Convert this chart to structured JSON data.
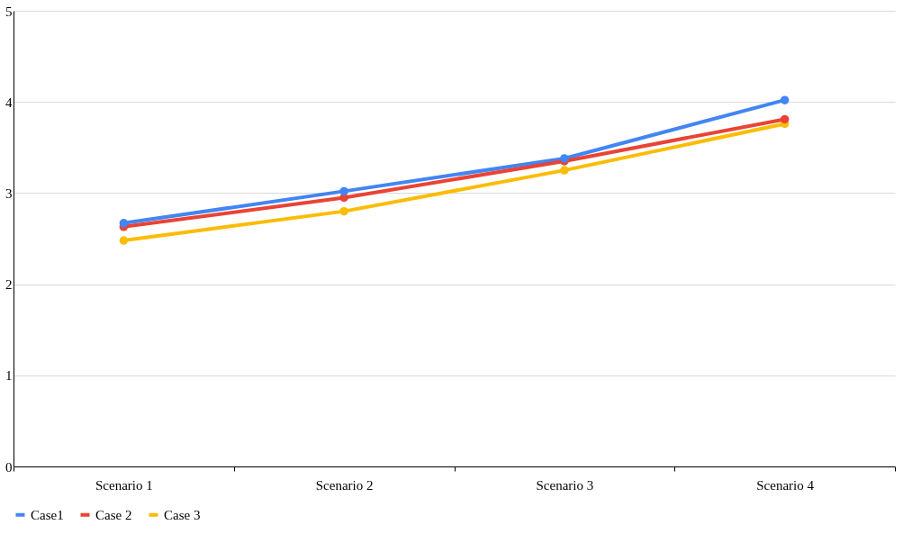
{
  "chart_data": {
    "type": "line",
    "categories": [
      "Scenario 1",
      "Scenario 2",
      "Scenario 3",
      "Scenario 4"
    ],
    "series": [
      {
        "name": "Case1",
        "color": "#4285f4",
        "values": [
          2.67,
          3.02,
          3.38,
          4.02
        ]
      },
      {
        "name": "Case 2",
        "color": "#ea4335",
        "values": [
          2.63,
          2.95,
          3.35,
          3.81
        ]
      },
      {
        "name": "Case 3",
        "color": "#fbbc04",
        "values": [
          2.48,
          2.8,
          3.25,
          3.76
        ]
      }
    ],
    "ylim": [
      0,
      5
    ],
    "yticks": [
      0,
      1,
      2,
      3,
      4,
      5
    ],
    "grid": "y",
    "legend": "bottom",
    "marker": "circle",
    "line_style": "solid"
  }
}
